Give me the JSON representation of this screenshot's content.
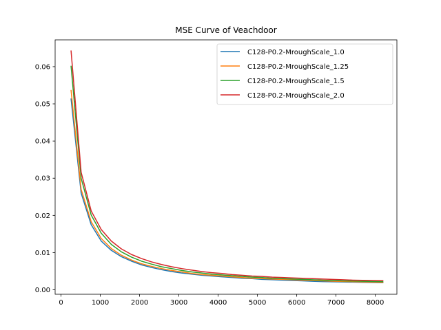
{
  "chart_data": {
    "type": "line",
    "title": "MSE Curve of Veachdoor",
    "xlabel": "",
    "ylabel": "",
    "xlim": [
      -150,
      8550
    ],
    "ylim": [
      -0.0012,
      0.0672
    ],
    "xticks": [
      0,
      1000,
      2000,
      3000,
      4000,
      5000,
      6000,
      7000,
      8000
    ],
    "yticks": [
      0.0,
      0.01,
      0.02,
      0.03,
      0.04,
      0.05,
      0.06
    ],
    "ytick_labels": [
      "0.00",
      "0.01",
      "0.02",
      "0.03",
      "0.04",
      "0.05",
      "0.06"
    ],
    "grid": false,
    "legend_position": "top-right",
    "x": [
      256,
      512,
      768,
      1024,
      1280,
      1536,
      1792,
      2048,
      2304,
      2560,
      2816,
      3072,
      3328,
      3584,
      3840,
      4096,
      4352,
      4608,
      4864,
      5120,
      5376,
      5632,
      5888,
      6144,
      6400,
      6656,
      6912,
      7168,
      7424,
      7680,
      7936,
      8192
    ],
    "series": [
      {
        "name": "C128-P0.2-MroughScale_1.0",
        "color": "#1f77b4",
        "values": [
          0.0513,
          0.026,
          0.0175,
          0.0131,
          0.0106,
          0.0089,
          0.0077,
          0.0067,
          0.006,
          0.0054,
          0.0049,
          0.0045,
          0.0042,
          0.0039,
          0.0037,
          0.0035,
          0.0033,
          0.0031,
          0.003,
          0.0028,
          0.0027,
          0.0026,
          0.0025,
          0.0024,
          0.0023,
          0.0022,
          0.00215,
          0.0021,
          0.00205,
          0.002,
          0.00195,
          0.0019
        ]
      },
      {
        "name": "C128-P0.2-MroughScale_1.25",
        "color": "#ff7f0e",
        "values": [
          0.0536,
          0.027,
          0.0183,
          0.0138,
          0.0111,
          0.0093,
          0.008,
          0.007,
          0.0063,
          0.0057,
          0.0052,
          0.0048,
          0.0044,
          0.0041,
          0.0039,
          0.0037,
          0.0035,
          0.0033,
          0.0031,
          0.003,
          0.0029,
          0.0028,
          0.0027,
          0.0026,
          0.0025,
          0.0024,
          0.00232,
          0.00225,
          0.00218,
          0.0021,
          0.00205,
          0.002
        ]
      },
      {
        "name": "C128-P0.2-MroughScale_1.5",
        "color": "#2ca02c",
        "values": [
          0.0601,
          0.03,
          0.0201,
          0.0152,
          0.0122,
          0.0102,
          0.0088,
          0.0077,
          0.0069,
          0.0062,
          0.0057,
          0.0052,
          0.0048,
          0.0045,
          0.0042,
          0.004,
          0.0038,
          0.0036,
          0.0034,
          0.0033,
          0.0031,
          0.003,
          0.0029,
          0.0028,
          0.0027,
          0.0026,
          0.0025,
          0.0024,
          0.00235,
          0.0023,
          0.00225,
          0.0022
        ]
      },
      {
        "name": "C128-P0.2-MroughScale_2.0",
        "color": "#d62728",
        "values": [
          0.0642,
          0.0316,
          0.0212,
          0.0162,
          0.0131,
          0.011,
          0.0095,
          0.0084,
          0.0075,
          0.0068,
          0.0062,
          0.0057,
          0.0053,
          0.0049,
          0.0046,
          0.0044,
          0.0041,
          0.0039,
          0.0037,
          0.0036,
          0.0034,
          0.0033,
          0.0032,
          0.0031,
          0.003,
          0.0029,
          0.0028,
          0.0027,
          0.0026,
          0.00255,
          0.0025,
          0.00245
        ]
      }
    ]
  }
}
